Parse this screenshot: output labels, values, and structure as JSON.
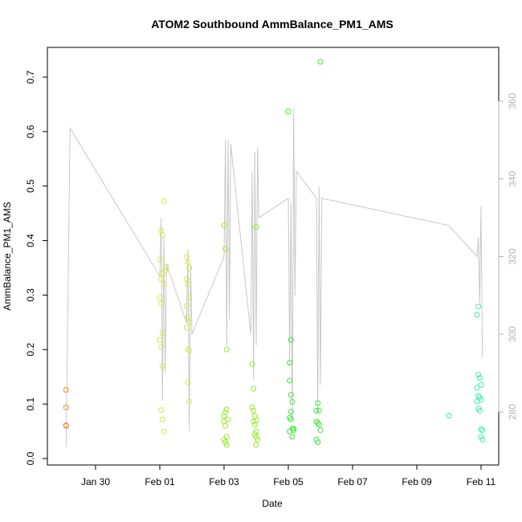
{
  "chart_data": {
    "type": "scatter",
    "title": "ATOM2 Southbound AmmBalance_PM1_AMS",
    "xlabel": "Date",
    "ylabel": "AmmBalance_PM1_AMS",
    "x_unit": "date (days)",
    "xlim": [
      "2015-01-28 12:00",
      "2015-02-11 18:00"
    ],
    "ylim": [
      0,
      0.75
    ],
    "y_ticks": [
      0.0,
      0.1,
      0.2,
      0.3,
      0.4,
      0.5,
      0.6,
      0.7
    ],
    "y_tick_labels": [
      "0.0",
      "0.1",
      "0.2",
      "0.3",
      "0.4",
      "0.5",
      "0.6",
      "0.7"
    ],
    "x_tick_labels": [
      "Jan 30",
      "Feb 01",
      "Feb 03",
      "Feb 05",
      "Feb 07",
      "Feb 09",
      "Feb 11"
    ],
    "x_tick_dates": [
      "2015-01-30",
      "2015-02-01",
      "2015-02-03",
      "2015-02-05",
      "2015-02-07",
      "2015-02-09",
      "2015-02-11"
    ],
    "y2lim": [
      268,
      368
    ],
    "y2_ticks": [
      280,
      300,
      320,
      340,
      360
    ],
    "y2_tick_labels": [
      "280",
      "300",
      "320",
      "340",
      "360"
    ],
    "grid": false,
    "legend": "none",
    "colors": {
      "line": "#c8c8c8",
      "frame": "#000000",
      "right_axis": "#b3b3b3"
    },
    "series": [
      {
        "color": "#f08a24",
        "points": [
          [
            "2015-01-29 02:00",
            0.126
          ],
          [
            "2015-01-29 02:00",
            0.094
          ],
          [
            "2015-01-29 02:00",
            0.061
          ],
          [
            "2015-01-29 02:00",
            0.06
          ]
        ]
      },
      {
        "color": "#d8e84a",
        "points": [
          [
            "2015-02-01 00:00",
            0.365
          ],
          [
            "2015-02-01 01:00",
            0.418
          ],
          [
            "2015-02-01 02:00",
            0.41
          ],
          [
            "2015-02-01 03:00",
            0.472
          ],
          [
            "2015-02-01 01:00",
            0.33
          ],
          [
            "2015-02-01 02:00",
            0.34
          ],
          [
            "2015-02-01 03:00",
            0.32
          ],
          [
            "2015-02-01 00:00",
            0.295
          ],
          [
            "2015-02-01 01:00",
            0.285
          ],
          [
            "2015-02-01 02:00",
            0.23
          ],
          [
            "2015-02-01 00:00",
            0.218
          ],
          [
            "2015-02-01 01:00",
            0.205
          ],
          [
            "2015-02-01 02:00",
            0.17
          ],
          [
            "2015-02-01 01:00",
            0.089
          ],
          [
            "2015-02-01 02:00",
            0.072
          ],
          [
            "2015-02-01 03:00",
            0.05
          ],
          [
            "2015-02-01 04:00",
            0.345
          ],
          [
            "2015-02-01 05:00",
            0.352
          ],
          [
            "2015-02-01 20:00",
            0.37
          ],
          [
            "2015-02-01 21:00",
            0.36
          ],
          [
            "2015-02-01 22:00",
            0.35
          ],
          [
            "2015-02-01 20:00",
            0.33
          ],
          [
            "2015-02-01 21:00",
            0.32
          ],
          [
            "2015-02-01 22:00",
            0.295
          ],
          [
            "2015-02-01 20:00",
            0.28
          ],
          [
            "2015-02-01 21:00",
            0.26
          ],
          [
            "2015-02-01 22:00",
            0.25
          ],
          [
            "2015-02-01 20:00",
            0.24
          ],
          [
            "2015-02-01 21:00",
            0.2
          ],
          [
            "2015-02-01 22:00",
            0.198
          ],
          [
            "2015-02-01 21:00",
            0.14
          ],
          [
            "2015-02-01 22:00",
            0.105
          ]
        ]
      },
      {
        "color": "#9ce82a",
        "points": [
          [
            "2015-02-03 00:00",
            0.428
          ],
          [
            "2015-02-03 01:00",
            0.385
          ],
          [
            "2015-02-03 02:00",
            0.2
          ],
          [
            "2015-02-03 00:00",
            0.078
          ],
          [
            "2015-02-03 01:00",
            0.085
          ],
          [
            "2015-02-03 02:00",
            0.09
          ],
          [
            "2015-02-03 03:00",
            0.072
          ],
          [
            "2015-02-03 00:00",
            0.068
          ],
          [
            "2015-02-03 01:00",
            0.06
          ],
          [
            "2015-02-03 02:00",
            0.04
          ],
          [
            "2015-02-03 00:00",
            0.035
          ],
          [
            "2015-02-03 01:00",
            0.03
          ],
          [
            "2015-02-03 02:00",
            0.025
          ],
          [
            "2015-02-03 21:00",
            0.173
          ],
          [
            "2015-02-03 22:00",
            0.128
          ],
          [
            "2015-02-03 21:00",
            0.094
          ],
          [
            "2015-02-03 22:00",
            0.088
          ],
          [
            "2015-02-03 23:00",
            0.078
          ],
          [
            "2015-02-04 00:00",
            0.07
          ],
          [
            "2015-02-03 22:00",
            0.068
          ],
          [
            "2015-02-03 23:00",
            0.062
          ],
          [
            "2015-02-04 00:00",
            0.05
          ],
          [
            "2015-02-03 23:00",
            0.045
          ],
          [
            "2015-02-04 00:00",
            0.04
          ],
          [
            "2015-02-04 01:00",
            0.035
          ],
          [
            "2015-02-04 00:00",
            0.025
          ],
          [
            "2015-02-04 00:00",
            0.425
          ]
        ]
      },
      {
        "color": "#3ee83a",
        "points": [
          [
            "2015-02-05 00:00",
            0.637
          ],
          [
            "2015-02-05 02:00",
            0.218
          ],
          [
            "2015-02-05 01:00",
            0.176
          ],
          [
            "2015-02-05 01:00",
            0.143
          ],
          [
            "2015-02-05 02:00",
            0.117
          ],
          [
            "2015-02-05 03:00",
            0.104
          ],
          [
            "2015-02-05 02:00",
            0.086
          ],
          [
            "2015-02-05 01:00",
            0.075
          ],
          [
            "2015-02-05 02:00",
            0.072
          ],
          [
            "2015-02-05 03:00",
            0.055
          ],
          [
            "2015-02-05 04:00",
            0.052
          ],
          [
            "2015-02-05 01:00",
            0.05
          ],
          [
            "2015-02-05 03:00",
            0.04
          ],
          [
            "2015-02-05 04:00",
            0.055
          ],
          [
            "2015-02-06 00:00",
            0.728
          ],
          [
            "2015-02-05 22:00",
            0.102
          ],
          [
            "2015-02-05 21:00",
            0.088
          ],
          [
            "2015-02-05 23:00",
            0.088
          ],
          [
            "2015-02-05 21:00",
            0.068
          ],
          [
            "2015-02-05 22:00",
            0.065
          ],
          [
            "2015-02-05 23:00",
            0.062
          ],
          [
            "2015-02-06 00:00",
            0.052
          ],
          [
            "2015-02-05 21:00",
            0.035
          ],
          [
            "2015-02-05 22:00",
            0.03
          ]
        ]
      },
      {
        "color": "#3ee8b8",
        "points": [
          [
            "2015-02-10 00:00",
            0.079
          ],
          [
            "2015-02-10 21:00",
            0.264
          ],
          [
            "2015-02-10 22:00",
            0.279
          ],
          [
            "2015-02-10 22:00",
            0.154
          ],
          [
            "2015-02-10 23:00",
            0.148
          ],
          [
            "2015-02-11 00:00",
            0.135
          ],
          [
            "2015-02-10 21:00",
            0.13
          ],
          [
            "2015-02-10 22:00",
            0.115
          ],
          [
            "2015-02-10 23:00",
            0.112
          ],
          [
            "2015-02-11 00:00",
            0.108
          ],
          [
            "2015-02-10 21:00",
            0.105
          ],
          [
            "2015-02-10 22:00",
            0.092
          ],
          [
            "2015-02-10 23:00",
            0.088
          ],
          [
            "2015-02-11 00:00",
            0.054
          ],
          [
            "2015-02-11 01:00",
            0.052
          ],
          [
            "2015-02-11 00:00",
            0.04
          ],
          [
            "2015-02-11 01:00",
            0.035
          ]
        ]
      }
    ],
    "secondary_line": {
      "axis": "right",
      "color": "#c8c8c8",
      "points": [
        [
          "2015-01-29 02:00",
          271
        ],
        [
          "2015-01-29 05:00",
          353
        ],
        [
          "2015-02-01 00:00",
          315
        ],
        [
          "2015-02-01 01:00",
          330
        ],
        [
          "2015-02-01 02:00",
          283
        ],
        [
          "2015-02-01 03:00",
          325
        ],
        [
          "2015-02-01 04:00",
          290
        ],
        [
          "2015-02-01 05:00",
          318
        ],
        [
          "2015-02-01 20:00",
          303
        ],
        [
          "2015-02-01 21:00",
          322
        ],
        [
          "2015-02-01 22:00",
          275
        ],
        [
          "2015-02-01 23:00",
          318
        ],
        [
          "2015-02-02 00:00",
          300
        ],
        [
          "2015-02-03 00:00",
          320
        ],
        [
          "2015-02-03 01:00",
          350
        ],
        [
          "2015-02-03 02:00",
          297
        ],
        [
          "2015-02-03 03:00",
          350
        ],
        [
          "2015-02-03 04:00",
          304
        ],
        [
          "2015-02-03 05:00",
          349
        ],
        [
          "2015-02-03 20:00",
          300
        ],
        [
          "2015-02-03 21:00",
          342
        ],
        [
          "2015-02-03 22:00",
          288
        ],
        [
          "2015-02-03 23:00",
          347
        ],
        [
          "2015-02-04 00:00",
          297
        ],
        [
          "2015-02-04 01:00",
          348
        ],
        [
          "2015-02-04 02:00",
          330
        ],
        [
          "2015-02-05 00:00",
          335
        ],
        [
          "2015-02-05 01:00",
          292
        ],
        [
          "2015-02-05 02:00",
          334
        ],
        [
          "2015-02-05 03:00",
          278
        ],
        [
          "2015-02-05 04:00",
          358
        ],
        [
          "2015-02-05 05:00",
          310
        ],
        [
          "2015-02-05 06:00",
          342
        ],
        [
          "2015-02-05 21:00",
          335
        ],
        [
          "2015-02-05 22:00",
          280
        ],
        [
          "2015-02-05 23:00",
          338
        ],
        [
          "2015-02-06 00:00",
          287
        ],
        [
          "2015-02-06 01:00",
          335
        ],
        [
          "2015-02-10 00:00",
          328
        ],
        [
          "2015-02-10 21:00",
          320
        ],
        [
          "2015-02-10 22:00",
          325
        ],
        [
          "2015-02-10 23:00",
          308
        ],
        [
          "2015-02-11 00:00",
          333
        ],
        [
          "2015-02-11 01:00",
          294
        ]
      ]
    }
  }
}
